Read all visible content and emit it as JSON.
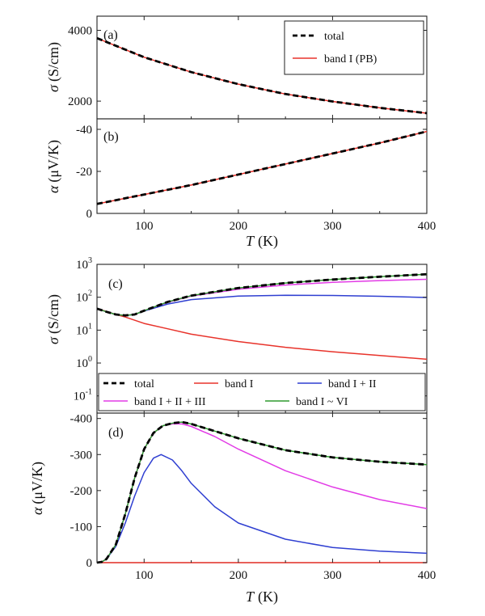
{
  "colors": {
    "total": "#000000",
    "band1": "#e8332b",
    "band12": "#2f3fd1",
    "band123": "#e23be6",
    "band1to6": "#2e9a2e"
  },
  "chart_data": [
    {
      "id": "a",
      "type": "line",
      "panel_label": "(a)",
      "ylabel_sym": "σ",
      "ylabel_unit": "(S/cm)",
      "xlabel": "",
      "xlim": [
        50,
        400
      ],
      "ylim": [
        1500,
        4400
      ],
      "yticks": [
        2000,
        4000
      ],
      "ytick_labels": [
        "2000",
        "4000"
      ],
      "xticks": [
        100,
        200,
        300,
        400
      ],
      "xtick_labels": [],
      "log_y": false,
      "inverted_y": false,
      "legend": {
        "position": "top-right",
        "entries": [
          {
            "label": "total",
            "style": "dashed",
            "color_key": "total"
          },
          {
            "label": "band I (PB)",
            "style": "solid",
            "color_key": "band1"
          }
        ]
      },
      "series": [
        {
          "name": "band I (PB)",
          "color_key": "band1",
          "dashed": false,
          "x": [
            50,
            100,
            150,
            200,
            250,
            300,
            350,
            400
          ],
          "y": [
            3780,
            3240,
            2820,
            2480,
            2200,
            1990,
            1810,
            1660
          ]
        },
        {
          "name": "total",
          "color_key": "total",
          "dashed": true,
          "x": [
            50,
            100,
            150,
            200,
            250,
            300,
            350,
            400
          ],
          "y": [
            3780,
            3240,
            2820,
            2480,
            2200,
            1990,
            1810,
            1660
          ]
        }
      ]
    },
    {
      "id": "b",
      "type": "line",
      "panel_label": "(b)",
      "ylabel_sym": "α",
      "ylabel_unit": "(μV/K)",
      "xlabel_sym": "T",
      "xlabel_unit": "(K)",
      "xlim": [
        50,
        400
      ],
      "ylim": [
        0,
        -45
      ],
      "yticks": [
        0,
        -20,
        -40
      ],
      "ytick_labels": [
        "0",
        "-20",
        "-40"
      ],
      "xticks": [
        100,
        200,
        300,
        400
      ],
      "xtick_labels": [
        "100",
        "200",
        "300",
        "400"
      ],
      "log_y": false,
      "inverted_y": true,
      "series": [
        {
          "name": "band I (PB)",
          "color_key": "band1",
          "dashed": false,
          "x": [
            50,
            100,
            150,
            200,
            250,
            300,
            350,
            400
          ],
          "y": [
            -4.5,
            -9,
            -13.5,
            -18.5,
            -23.5,
            -28.5,
            -33.5,
            -39
          ]
        },
        {
          "name": "total",
          "color_key": "total",
          "dashed": true,
          "x": [
            50,
            100,
            150,
            200,
            250,
            300,
            350,
            400
          ],
          "y": [
            -4.5,
            -9,
            -13.5,
            -18.5,
            -23.5,
            -28.5,
            -33.5,
            -39
          ]
        }
      ]
    },
    {
      "id": "c",
      "type": "line",
      "panel_label": "(c)",
      "ylabel_sym": "σ",
      "ylabel_unit": "(S/cm)",
      "xlabel": "",
      "xlim": [
        50,
        400
      ],
      "ylim": [
        0.03,
        1000
      ],
      "log_y": true,
      "inverted_y": false,
      "yticks": [
        0.1,
        1,
        10,
        100,
        1000
      ],
      "ytick_base": "10",
      "ytick_exp": [
        "-1",
        "0",
        "1",
        "2",
        "3"
      ],
      "xticks": [
        100,
        200,
        300,
        400
      ],
      "xtick_labels": [],
      "legend": {
        "position": "bottom",
        "entries": [
          {
            "label": "total",
            "style": "dashed",
            "color_key": "total"
          },
          {
            "label": "band I",
            "style": "solid",
            "color_key": "band1"
          },
          {
            "label": "band I + II",
            "style": "solid",
            "color_key": "band12"
          },
          {
            "label": "band I + II + III",
            "style": "solid",
            "color_key": "band123"
          },
          {
            "label": "band I ~ VI",
            "style": "solid",
            "color_key": "band1to6"
          }
        ]
      },
      "series": [
        {
          "name": "band I",
          "color_key": "band1",
          "dashed": false,
          "x": [
            50,
            60,
            70,
            80,
            100,
            125,
            150,
            200,
            250,
            300,
            350,
            400
          ],
          "y": [
            45,
            37,
            30,
            25,
            16,
            11,
            7.5,
            4.5,
            3.0,
            2.2,
            1.7,
            1.3
          ]
        },
        {
          "name": "band I + II",
          "color_key": "band12",
          "dashed": false,
          "x": [
            50,
            60,
            70,
            80,
            90,
            100,
            125,
            150,
            200,
            250,
            300,
            350,
            400
          ],
          "y": [
            45,
            36,
            30,
            28,
            30,
            38,
            62,
            85,
            108,
            115,
            113,
            107,
            98
          ]
        },
        {
          "name": "band I + II + III",
          "color_key": "band123",
          "dashed": false,
          "x": [
            50,
            60,
            70,
            80,
            90,
            100,
            125,
            150,
            200,
            250,
            300,
            350,
            400
          ],
          "y": [
            45,
            36,
            30,
            28,
            30,
            39,
            70,
            108,
            175,
            235,
            285,
            320,
            350
          ]
        },
        {
          "name": "band I ~ VI",
          "color_key": "band1to6",
          "dashed": false,
          "x": [
            50,
            60,
            70,
            80,
            90,
            100,
            125,
            150,
            200,
            250,
            300,
            350,
            400
          ],
          "y": [
            45,
            36,
            30,
            28,
            30,
            39,
            72,
            112,
            190,
            270,
            345,
            420,
            500
          ]
        },
        {
          "name": "total",
          "color_key": "total",
          "dashed": true,
          "x": [
            50,
            60,
            70,
            80,
            90,
            100,
            125,
            150,
            200,
            250,
            300,
            350,
            400
          ],
          "y": [
            45,
            36,
            30,
            28,
            30,
            39,
            72,
            112,
            190,
            270,
            345,
            420,
            500
          ]
        }
      ]
    },
    {
      "id": "d",
      "type": "line",
      "panel_label": "(d)",
      "ylabel_sym": "α",
      "ylabel_unit": "(μV/K)",
      "xlabel_sym": "T",
      "xlabel_unit": "(K)",
      "xlim": [
        50,
        400
      ],
      "ylim": [
        0,
        -415
      ],
      "yticks": [
        0,
        -100,
        -200,
        -300,
        -400
      ],
      "ytick_labels": [
        "0",
        "-100",
        "-200",
        "-300",
        "-400"
      ],
      "xticks": [
        100,
        200,
        300,
        400
      ],
      "xtick_labels": [
        "100",
        "200",
        "300",
        "400"
      ],
      "log_y": false,
      "inverted_y": true,
      "series": [
        {
          "name": "band I",
          "color_key": "band1",
          "dashed": false,
          "x": [
            50,
            400
          ],
          "y": [
            0,
            0
          ]
        },
        {
          "name": "band I + II",
          "color_key": "band12",
          "dashed": false,
          "x": [
            50,
            55,
            60,
            70,
            80,
            90,
            100,
            110,
            118,
            130,
            140,
            150,
            175,
            200,
            250,
            300,
            350,
            400
          ],
          "y": [
            0,
            -2,
            -10,
            -45,
            -110,
            -185,
            -250,
            -290,
            -300,
            -285,
            -255,
            -220,
            -155,
            -110,
            -65,
            -42,
            -32,
            -26
          ]
        },
        {
          "name": "band I + II + III",
          "color_key": "band123",
          "dashed": false,
          "x": [
            50,
            55,
            60,
            70,
            80,
            90,
            100,
            110,
            120,
            130,
            140,
            150,
            175,
            200,
            250,
            300,
            350,
            400
          ],
          "y": [
            0,
            -2,
            -10,
            -50,
            -135,
            -235,
            -315,
            -360,
            -380,
            -385,
            -385,
            -378,
            -350,
            -315,
            -255,
            -210,
            -175,
            -150
          ]
        },
        {
          "name": "band I ~ VI",
          "color_key": "band1to6",
          "dashed": false,
          "x": [
            50,
            55,
            60,
            70,
            80,
            90,
            100,
            110,
            120,
            130,
            140,
            150,
            175,
            200,
            250,
            300,
            350,
            400
          ],
          "y": [
            0,
            -2,
            -10,
            -50,
            -135,
            -235,
            -315,
            -360,
            -380,
            -387,
            -390,
            -385,
            -365,
            -345,
            -312,
            -292,
            -280,
            -272
          ]
        },
        {
          "name": "total",
          "color_key": "total",
          "dashed": true,
          "x": [
            50,
            55,
            60,
            70,
            80,
            90,
            100,
            110,
            120,
            130,
            140,
            150,
            175,
            200,
            250,
            300,
            350,
            400
          ],
          "y": [
            0,
            -2,
            -10,
            -50,
            -135,
            -235,
            -315,
            -360,
            -380,
            -387,
            -390,
            -385,
            -365,
            -345,
            -312,
            -292,
            -280,
            -272
          ]
        }
      ]
    }
  ]
}
